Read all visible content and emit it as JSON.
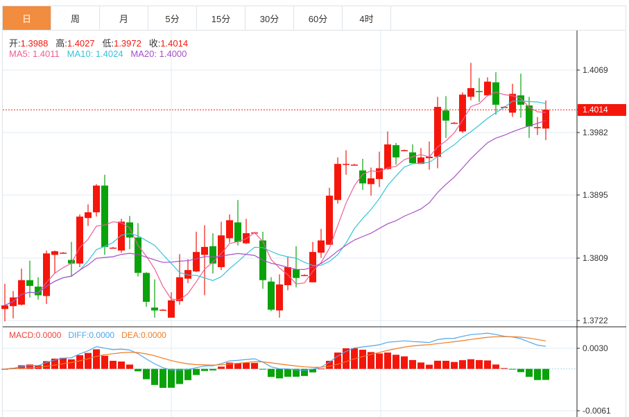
{
  "tabs": [
    "日",
    "周",
    "月",
    "5分",
    "15分",
    "30分",
    "60分",
    "4时"
  ],
  "active_tab": 0,
  "ohlc": {
    "open_label": "开:",
    "open": "1.3988",
    "high_label": "高:",
    "high": "1.4027",
    "low_label": "低:",
    "low": "1.3972",
    "close_label": "收:",
    "close": "1.4014"
  },
  "ma": {
    "ma5_label": "MA5:",
    "ma5": "1.4011",
    "ma10_label": "MA10:",
    "ma10": "1.4024",
    "ma20_label": "MA20:",
    "ma20": "1.4000"
  },
  "macd_header": {
    "macd_label": "MACD:",
    "macd": "0.0000",
    "diff_label": "DIFF:",
    "diff": "0.0000",
    "dea_label": "DEA:",
    "dea": "0.0000"
  },
  "price_axis": [
    "1.4069",
    "1.3982",
    "1.3895",
    "1.3809",
    "1.3722"
  ],
  "last_price": "1.4014",
  "macd_axis": [
    "0.0030",
    "-0.0061"
  ],
  "colors": {
    "up": "#f5160b",
    "down": "#0aa20a",
    "ma5": "#ee5d94",
    "ma10": "#36c2d8",
    "ma20": "#a84fc6",
    "diff": "#4ea6e8",
    "dea": "#f07a20",
    "accent": "#f28c3e"
  },
  "chart_data": {
    "type": "candlestick",
    "price_range": [
      1.3722,
      1.4069
    ],
    "macd_range": [
      -0.0061,
      0.003
    ],
    "candles": [
      [
        1.3738,
        1.3773,
        1.3721,
        1.3743
      ],
      [
        1.3742,
        1.3763,
        1.3725,
        1.3754
      ],
      [
        1.3744,
        1.3794,
        1.3743,
        1.3778
      ],
      [
        1.3778,
        1.3805,
        1.3754,
        1.377
      ],
      [
        1.3769,
        1.3782,
        1.3751,
        1.3757
      ],
      [
        1.3756,
        1.3819,
        1.3745,
        1.3815
      ],
      [
        1.3813,
        1.3819,
        1.3787,
        1.3818
      ],
      [
        1.3816,
        1.3817,
        1.3815,
        1.3816
      ],
      [
        1.3806,
        1.3831,
        1.3783,
        1.3801
      ],
      [
        1.3801,
        1.3869,
        1.3796,
        1.3866
      ],
      [
        1.3864,
        1.3883,
        1.3853,
        1.3872
      ],
      [
        1.3872,
        1.3911,
        1.3866,
        1.3909
      ],
      [
        1.3909,
        1.3924,
        1.3813,
        1.3824
      ],
      [
        1.3823,
        1.3824,
        1.3822,
        1.3823
      ],
      [
        1.3819,
        1.3863,
        1.3816,
        1.3859
      ],
      [
        1.3858,
        1.3867,
        1.3821,
        1.3837
      ],
      [
        1.3837,
        1.3857,
        1.3783,
        1.3788
      ],
      [
        1.3788,
        1.3789,
        1.3741,
        1.3748
      ],
      [
        1.374,
        1.3779,
        1.3726,
        1.3736
      ],
      [
        1.3737,
        1.3738,
        1.3736,
        1.3737
      ],
      [
        1.3726,
        1.3761,
        1.3726,
        1.375
      ],
      [
        1.3749,
        1.3814,
        1.3744,
        1.3782
      ],
      [
        1.378,
        1.3807,
        1.3774,
        1.3792
      ],
      [
        1.379,
        1.3845,
        1.3789,
        1.3817
      ],
      [
        1.3813,
        1.3854,
        1.3757,
        1.3824
      ],
      [
        1.3825,
        1.3843,
        1.3787,
        1.3801
      ],
      [
        1.3796,
        1.3859,
        1.3792,
        1.384
      ],
      [
        1.3836,
        1.3869,
        1.383,
        1.3861
      ],
      [
        1.3858,
        1.3889,
        1.3826,
        1.3831
      ],
      [
        1.3829,
        1.3863,
        1.3828,
        1.3843
      ],
      [
        1.3844,
        1.3845,
        1.3843,
        1.3844
      ],
      [
        1.3833,
        1.3845,
        1.3766,
        1.3778
      ],
      [
        1.3776,
        1.3782,
        1.3735,
        1.3737
      ],
      [
        1.3736,
        1.3786,
        1.3726,
        1.3772
      ],
      [
        1.3771,
        1.381,
        1.3764,
        1.3796
      ],
      [
        1.3793,
        1.3825,
        1.3768,
        1.3781
      ],
      [
        1.3785,
        1.3786,
        1.3784,
        1.3785
      ],
      [
        1.3775,
        1.3831,
        1.3775,
        1.3817
      ],
      [
        1.3816,
        1.3849,
        1.3809,
        1.3833
      ],
      [
        1.3827,
        1.3906,
        1.3827,
        1.3895
      ],
      [
        1.3889,
        1.3948,
        1.3884,
        1.3939
      ],
      [
        1.3939,
        1.3958,
        1.3924,
        1.3939
      ],
      [
        1.3938,
        1.3939,
        1.3937,
        1.3938
      ],
      [
        1.393,
        1.3946,
        1.3903,
        1.3912
      ],
      [
        1.3911,
        1.3934,
        1.3895,
        1.3919
      ],
      [
        1.3918,
        1.3956,
        1.3907,
        1.3933
      ],
      [
        1.3932,
        1.3984,
        1.3931,
        1.3966
      ],
      [
        1.3965,
        1.3968,
        1.3938,
        1.3948
      ],
      [
        1.3958,
        1.3959,
        1.3957,
        1.3958
      ],
      [
        1.3955,
        1.3966,
        1.394,
        1.394
      ],
      [
        1.3939,
        1.3961,
        1.3939,
        1.3948
      ],
      [
        1.3947,
        1.397,
        1.3931,
        1.3949
      ],
      [
        1.3949,
        1.4032,
        1.3933,
        1.4018
      ],
      [
        1.4013,
        1.4033,
        1.3975,
        1.3999
      ],
      [
        1.3996,
        1.3997,
        1.3995,
        1.3996
      ],
      [
        1.3984,
        1.4038,
        1.3982,
        1.4035
      ],
      [
        1.4032,
        1.4079,
        1.4027,
        1.4044
      ],
      [
        1.404,
        1.4058,
        1.4025,
        1.4039
      ],
      [
        1.4034,
        1.4059,
        1.4034,
        1.4053
      ],
      [
        1.4052,
        1.4066,
        1.4007,
        1.4021
      ],
      [
        1.4018,
        1.4019,
        1.4017,
        1.4018
      ],
      [
        1.401,
        1.405,
        1.4004,
        1.4036
      ],
      [
        1.4034,
        1.4064,
        1.4003,
        1.4021
      ],
      [
        1.402,
        1.4032,
        1.3975,
        1.3991
      ],
      [
        1.3989,
        1.4004,
        1.3979,
        1.399
      ],
      [
        1.3988,
        1.4027,
        1.3972,
        1.4014
      ]
    ],
    "candle_format": [
      "open",
      "high",
      "low",
      "close"
    ],
    "indicators": [
      "MA5",
      "MA10",
      "MA20",
      "MACD(12,26,9)"
    ]
  }
}
